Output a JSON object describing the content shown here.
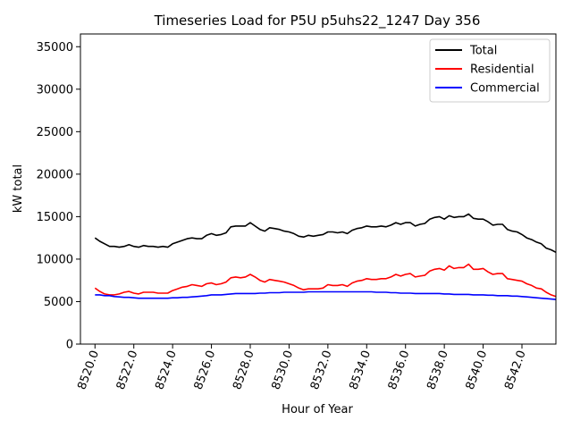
{
  "chart_data": {
    "type": "line",
    "title": "Timeseries Load for P5U p5uhs22_1247  Day 356",
    "xlabel": "Hour of Year",
    "ylabel": "kW total",
    "xlim": [
      8519.25,
      8543.75
    ],
    "ylim": [
      0,
      36500
    ],
    "xticks": [
      8520,
      8522,
      8524,
      8526,
      8528,
      8530,
      8532,
      8534,
      8536,
      8538,
      8540,
      8542
    ],
    "xtick_labels": [
      "8520.0",
      "8522.0",
      "8524.0",
      "8526.0",
      "8528.0",
      "8530.0",
      "8532.0",
      "8534.0",
      "8536.0",
      "8538.0",
      "8540.0",
      "8542.0"
    ],
    "yticks": [
      0,
      5000,
      10000,
      15000,
      20000,
      25000,
      30000,
      35000
    ],
    "ytick_labels": [
      "0",
      "5000",
      "10000",
      "15000",
      "20000",
      "25000",
      "30000",
      "35000"
    ],
    "legend_position": "top-right",
    "x": [
      8520.0,
      8520.25,
      8520.5,
      8520.75,
      8521.0,
      8521.25,
      8521.5,
      8521.75,
      8522.0,
      8522.25,
      8522.5,
      8522.75,
      8523.0,
      8523.25,
      8523.5,
      8523.75,
      8524.0,
      8524.25,
      8524.5,
      8524.75,
      8525.0,
      8525.25,
      8525.5,
      8525.75,
      8526.0,
      8526.25,
      8526.5,
      8526.75,
      8527.0,
      8527.25,
      8527.5,
      8527.75,
      8528.0,
      8528.25,
      8528.5,
      8528.75,
      8529.0,
      8529.25,
      8529.5,
      8529.75,
      8530.0,
      8530.25,
      8530.5,
      8530.75,
      8531.0,
      8531.25,
      8531.5,
      8531.75,
      8532.0,
      8532.25,
      8532.5,
      8532.75,
      8533.0,
      8533.25,
      8533.5,
      8533.75,
      8534.0,
      8534.25,
      8534.5,
      8534.75,
      8535.0,
      8535.25,
      8535.5,
      8535.75,
      8536.0,
      8536.25,
      8536.5,
      8536.75,
      8537.0,
      8537.25,
      8537.5,
      8537.75,
      8538.0,
      8538.25,
      8538.5,
      8538.75,
      8539.0,
      8539.25,
      8539.5,
      8539.75,
      8540.0,
      8540.25,
      8540.5,
      8540.75,
      8541.0,
      8541.25,
      8541.5,
      8541.75,
      8542.0,
      8542.25,
      8542.5,
      8542.75,
      8543.0,
      8543.25,
      8543.5,
      8543.75
    ],
    "series": [
      {
        "name": "Total",
        "color": "#000000",
        "values": [
          12500,
          12100,
          11800,
          11500,
          11500,
          11400,
          11500,
          11700,
          11500,
          11400,
          11600,
          11500,
          11500,
          11400,
          11500,
          11400,
          11800,
          12000,
          12200,
          12400,
          12500,
          12400,
          12400,
          12800,
          13000,
          12800,
          12900,
          13100,
          13800,
          13900,
          13900,
          13900,
          14300,
          13900,
          13500,
          13300,
          13700,
          13600,
          13500,
          13300,
          13200,
          13000,
          12700,
          12600,
          12800,
          12700,
          12800,
          12900,
          13200,
          13200,
          13100,
          13200,
          13000,
          13400,
          13600,
          13700,
          13900,
          13800,
          13800,
          13900,
          13800,
          14000,
          14300,
          14100,
          14300,
          14300,
          13900,
          14100,
          14200,
          14700,
          14900,
          15000,
          14700,
          15100,
          14900,
          15000,
          15000,
          15300,
          14800,
          14700,
          14700,
          14400,
          14000,
          14100,
          14100,
          13500,
          13300,
          13200,
          12900,
          12500,
          12300,
          12000,
          11800,
          11300,
          11100,
          10800
        ]
      },
      {
        "name": "Residential",
        "color": "#ff0000",
        "values": [
          6600,
          6200,
          5900,
          5800,
          5800,
          5900,
          6100,
          6200,
          6000,
          5900,
          6100,
          6100,
          6100,
          6000,
          6000,
          6000,
          6300,
          6500,
          6700,
          6800,
          7000,
          6900,
          6800,
          7100,
          7200,
          7000,
          7100,
          7300,
          7800,
          7900,
          7800,
          7900,
          8200,
          7900,
          7500,
          7300,
          7600,
          7500,
          7400,
          7300,
          7100,
          6900,
          6600,
          6400,
          6500,
          6500,
          6500,
          6600,
          7000,
          6900,
          6900,
          7000,
          6800,
          7200,
          7400,
          7500,
          7700,
          7600,
          7600,
          7700,
          7700,
          7900,
          8200,
          8000,
          8200,
          8300,
          7900,
          8000,
          8100,
          8600,
          8800,
          8900,
          8700,
          9200,
          8900,
          9000,
          9000,
          9400,
          8800,
          8800,
          8900,
          8500,
          8200,
          8300,
          8300,
          7700,
          7600,
          7500,
          7400,
          7100,
          6900,
          6600,
          6500,
          6100,
          5800,
          5600
        ]
      },
      {
        "name": "Commercial",
        "color": "#0000ff",
        "values": [
          5800,
          5800,
          5700,
          5700,
          5600,
          5550,
          5500,
          5500,
          5450,
          5400,
          5400,
          5400,
          5400,
          5400,
          5400,
          5400,
          5450,
          5450,
          5500,
          5500,
          5550,
          5600,
          5650,
          5700,
          5800,
          5800,
          5800,
          5850,
          5900,
          5950,
          5950,
          5950,
          5950,
          5950,
          6000,
          6000,
          6050,
          6050,
          6050,
          6100,
          6100,
          6100,
          6100,
          6100,
          6150,
          6150,
          6150,
          6150,
          6150,
          6150,
          6150,
          6150,
          6150,
          6150,
          6150,
          6150,
          6150,
          6150,
          6100,
          6100,
          6100,
          6050,
          6050,
          6000,
          6000,
          6000,
          5950,
          5950,
          5950,
          5950,
          5950,
          5950,
          5900,
          5900,
          5850,
          5850,
          5850,
          5850,
          5800,
          5800,
          5800,
          5750,
          5750,
          5700,
          5700,
          5700,
          5650,
          5650,
          5600,
          5550,
          5500,
          5450,
          5400,
          5350,
          5300,
          5250
        ]
      }
    ]
  }
}
